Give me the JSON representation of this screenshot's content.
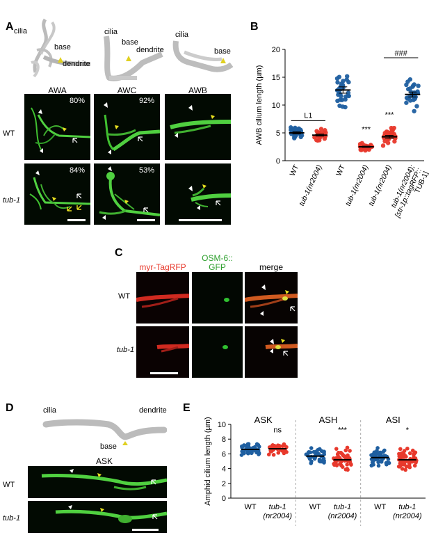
{
  "panels": {
    "A": {
      "label": "A",
      "schematic_labels": {
        "cilia1": "cilia",
        "base1": "base",
        "dendrite1": "dendrite",
        "cilia2": "cilia",
        "base2": "base",
        "dendrite2": "dendrite",
        "cilia3": "cilia",
        "base3": "base"
      },
      "neurons": [
        "AWA",
        "AWC",
        "AWB"
      ],
      "rows": [
        "WT",
        "tub-1"
      ],
      "percents": {
        "awa_wt": "80%",
        "awc_wt": "92%",
        "awa_tub1": "84%",
        "awc_tub1": "53%"
      }
    },
    "B": {
      "label": "B"
    },
    "C": {
      "label": "C",
      "channels": [
        "myr-TagRFP",
        "OSM-6::",
        "GFP",
        "merge"
      ],
      "rows": [
        "WT",
        "tub-1"
      ]
    },
    "D": {
      "label": "D",
      "schematic_labels": {
        "cilia": "cilia",
        "dendrite": "dendrite",
        "base": "base"
      },
      "neuron": "ASK",
      "rows": [
        "WT",
        "tub-1"
      ]
    },
    "E": {
      "label": "E"
    }
  },
  "chart_data": [
    {
      "type": "scatter",
      "panel": "B",
      "ylabel": "AWB cilium length (µm)",
      "ylim": [
        0,
        20
      ],
      "yticks": [
        0,
        5,
        10,
        15,
        20
      ],
      "categories": [
        "WT",
        "tub-1(nr2004)",
        "WT",
        "tub-1(nr2004)",
        "tub-1(nr2004)",
        "tub-1(nr2004); [str-1p::tagRFP:: TUB-1]"
      ],
      "category_lines": [
        [
          "WT"
        ],
        [
          "tub-1(nr2004)"
        ],
        [
          "WT"
        ],
        [
          "tub-1(nr2004)"
        ],
        [
          "tub-1(nr2004)"
        ],
        [
          "tub-1(nr2004);",
          "[str-1p::tagRFP::",
          "TUB-1]"
        ]
      ],
      "means": [
        5.0,
        4.6,
        12.7,
        2.5,
        4.3,
        11.9
      ],
      "colors": [
        "#1f5fa0",
        "#e8392c",
        "#1f5fa0",
        "#e8392c",
        "#e8392c",
        "#1f5fa0"
      ],
      "annotations": {
        "L1": "L1",
        "sig3": "***",
        "sig4": "***",
        "hash": "###"
      },
      "grid": false
    },
    {
      "type": "scatter",
      "panel": "E",
      "ylabel": "Amphid cilium length (µm)",
      "ylim": [
        0,
        10
      ],
      "yticks": [
        0,
        2,
        4,
        6,
        8,
        10
      ],
      "groups": [
        "ASK",
        "ASH",
        "ASI"
      ],
      "categories": [
        "WT",
        "tub-1 (nr2004)",
        "WT",
        "tub-1 (nr2004)",
        "WT",
        "tub-1 (nr2004)"
      ],
      "means": [
        6.6,
        6.7,
        5.7,
        5.2,
        5.5,
        5.2
      ],
      "colors": [
        "#1f5fa0",
        "#e8392c",
        "#1f5fa0",
        "#e8392c",
        "#1f5fa0",
        "#e8392c"
      ],
      "significance": [
        "ns",
        "***",
        "*"
      ],
      "grid": false
    }
  ]
}
